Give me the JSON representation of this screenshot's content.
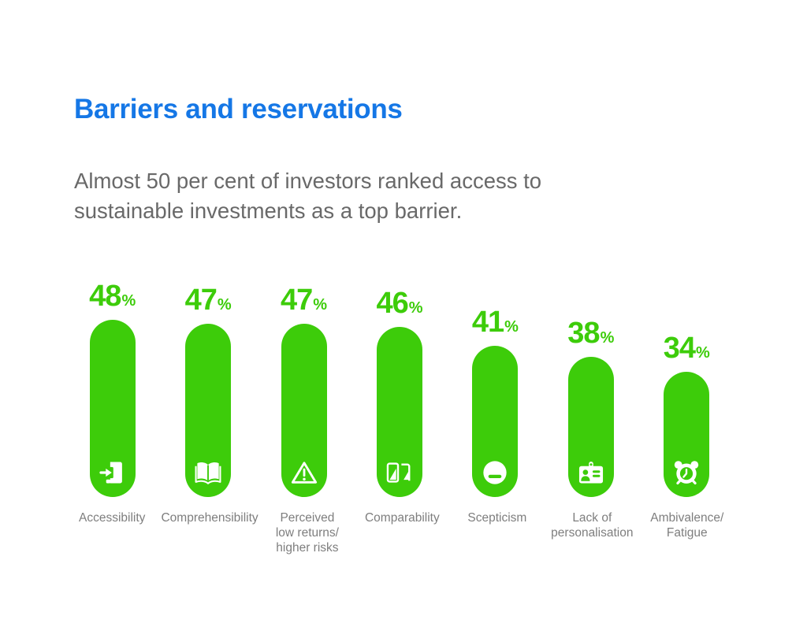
{
  "header": {
    "title": "Barriers and reservations",
    "subtitle": "Almost 50 per cent of investors ranked access to sustainable investments as a top barrier."
  },
  "colors": {
    "title_blue": "#1577E6",
    "subtitle_grey": "#696969",
    "label_grey": "#7E7E7E",
    "bar_green": "#3DCC0A",
    "background": "#FFFFFF",
    "icon_white": "#FFFFFF"
  },
  "chart_data": {
    "type": "bar",
    "title": "Barriers and reservations",
    "subtitle": "Almost 50 per cent of investors ranked access to sustainable investments as a top barrier.",
    "unit": "%",
    "orientation": "vertical",
    "grid": false,
    "ylim": [
      0,
      48
    ],
    "categories": [
      "Accessibility",
      "Comprehensibility",
      "Perceived low returns/ higher risks",
      "Comparability",
      "Scepticism",
      "Lack of personalisation",
      "Ambivalence/ Fatigue"
    ],
    "values": [
      48,
      47,
      47,
      46,
      41,
      38,
      34
    ],
    "bars": [
      {
        "label": "Accessibility",
        "value": 48,
        "icon": "door-enter-icon"
      },
      {
        "label": "Comprehensibility",
        "value": 47,
        "icon": "open-book-icon"
      },
      {
        "label": "Perceived\nlow returns/\nhigher risks",
        "value": 47,
        "icon": "warning-triangle-icon"
      },
      {
        "label": "Comparability",
        "value": 46,
        "icon": "compare-cards-icon"
      },
      {
        "label": "Scepticism",
        "value": 41,
        "icon": "minus-circle-icon"
      },
      {
        "label": "Lack of\npersonalisation",
        "value": 38,
        "icon": "id-card-icon"
      },
      {
        "label": "Ambivalence/\nFatigue",
        "value": 34,
        "icon": "alarm-clock-icon"
      }
    ]
  }
}
